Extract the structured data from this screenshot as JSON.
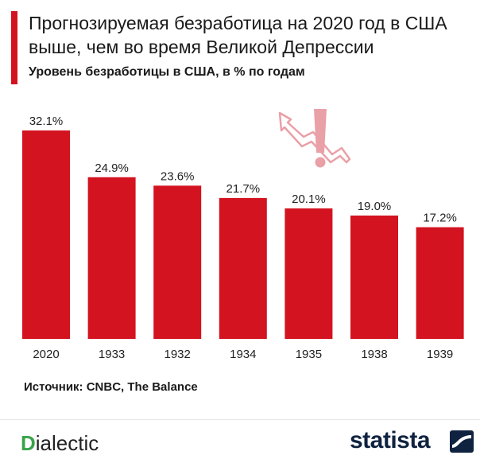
{
  "title": "Прогнозируемая безработица на 2020 год в США выше, чем во время Великой Депрессии",
  "subtitle": "Уровень безработицы в США, в % по годам",
  "source": "Источник: CNBC, The Balance",
  "brand_left": {
    "first": "D",
    "rest": "ialectic"
  },
  "brand_right": "statista",
  "colors": {
    "bar": "#d31320",
    "accent": "#d31320",
    "icon": "#e9a0a6"
  },
  "icons": [
    "trend-arrow-icon",
    "exclamation-icon",
    "statista-logo-icon"
  ],
  "chart_data": {
    "type": "bar",
    "title": "Прогнозируемая безработица на 2020 год в США выше, чем во время Великой Депрессии",
    "subtitle": "Уровень безработицы в США, в % по годам",
    "categories": [
      "2020",
      "1933",
      "1932",
      "1934",
      "1935",
      "1938",
      "1939"
    ],
    "values": [
      32.1,
      24.9,
      23.6,
      21.7,
      20.1,
      19.0,
      17.2
    ],
    "value_labels": [
      "32.1%",
      "24.9%",
      "23.6%",
      "21.7%",
      "20.1%",
      "19.0%",
      "17.2%"
    ],
    "xlabel": "",
    "ylabel": "",
    "ylim": [
      0,
      32.1
    ],
    "grid": false,
    "legend": "none"
  }
}
